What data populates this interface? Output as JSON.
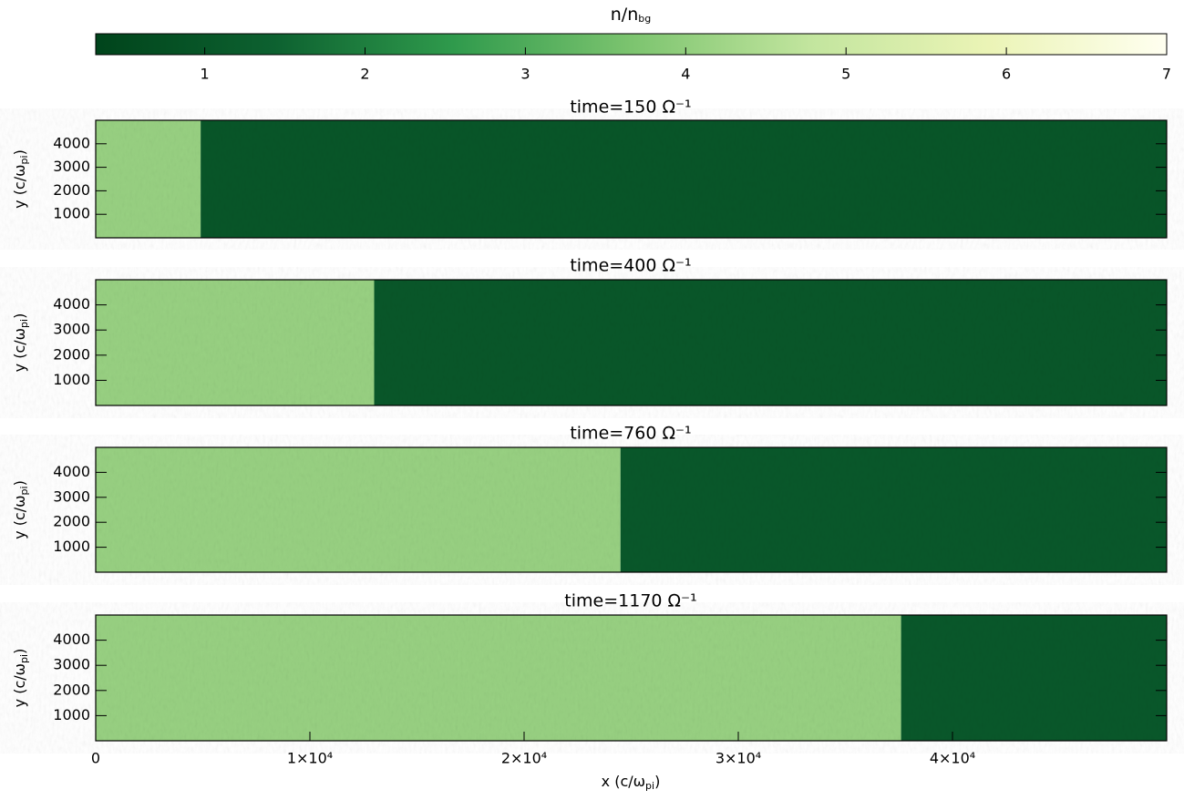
{
  "colorbar": {
    "label": [
      {
        "text": "n/n"
      },
      {
        "sub": "bg"
      }
    ],
    "lim": [
      0.32,
      7
    ],
    "ticks": [
      1,
      2,
      3,
      4,
      5,
      6,
      7
    ],
    "colors": [
      "#00441b",
      "#0d6130",
      "#2f9a4c",
      "#7cc46f",
      "#c2e59e",
      "#ebf4b6",
      "#fffff0"
    ]
  },
  "chart_data": [
    {
      "type": "heatmap",
      "title": "time=150  Ω⁻¹",
      "ylabel": [
        {
          "text": "y (c/ω"
        },
        {
          "sub": "pi"
        },
        {
          "text": ")"
        }
      ],
      "xlim": [
        0,
        50000
      ],
      "ylim": [
        0,
        5000
      ],
      "yticks": [
        1000,
        2000,
        3000,
        4000
      ],
      "regions": [
        {
          "xlim": [
            0,
            4900
          ],
          "value": 4.1
        },
        {
          "xlim": [
            4900,
            50000
          ],
          "value": 1.0
        }
      ]
    },
    {
      "type": "heatmap",
      "title": "time=400  Ω⁻¹",
      "ylabel": [
        {
          "text": "y (c/ω"
        },
        {
          "sub": "pi"
        },
        {
          "text": ")"
        }
      ],
      "xlim": [
        0,
        50000
      ],
      "ylim": [
        0,
        5000
      ],
      "yticks": [
        1000,
        2000,
        3000,
        4000
      ],
      "regions": [
        {
          "xlim": [
            0,
            13000
          ],
          "value": 4.1
        },
        {
          "xlim": [
            13000,
            50000
          ],
          "value": 1.05
        }
      ]
    },
    {
      "type": "heatmap",
      "title": "time=760  Ω⁻¹",
      "ylabel": [
        {
          "text": "y (c/ω"
        },
        {
          "sub": "pi"
        },
        {
          "text": ")"
        }
      ],
      "xlim": [
        0,
        50000
      ],
      "ylim": [
        0,
        5000
      ],
      "yticks": [
        1000,
        2000,
        3000,
        4000
      ],
      "regions": [
        {
          "xlim": [
            0,
            24500
          ],
          "value": 4.1
        },
        {
          "xlim": [
            24500,
            50000
          ],
          "value": 1.1
        }
      ]
    },
    {
      "type": "heatmap",
      "title": "time=1170  Ω⁻¹",
      "ylabel": [
        {
          "text": "y (c/ω"
        },
        {
          "sub": "pi"
        },
        {
          "text": ")"
        }
      ],
      "xlim": [
        0,
        50000
      ],
      "ylim": [
        0,
        5000
      ],
      "yticks": [
        1000,
        2000,
        3000,
        4000
      ],
      "xlabel": [
        {
          "text": "x (c/ω"
        },
        {
          "sub": "pi"
        },
        {
          "text": ")"
        }
      ],
      "xticks": [
        0,
        {
          "value": 10000,
          "label": "1×10⁴"
        },
        {
          "value": 20000,
          "label": "2×10⁴"
        },
        {
          "value": 30000,
          "label": "3×10⁴"
        },
        {
          "value": 40000,
          "label": "4×10⁴"
        }
      ],
      "regions": [
        {
          "xlim": [
            0,
            37600
          ],
          "value": 4.1
        },
        {
          "xlim": [
            37600,
            50000
          ],
          "value": 1.1
        }
      ]
    }
  ]
}
